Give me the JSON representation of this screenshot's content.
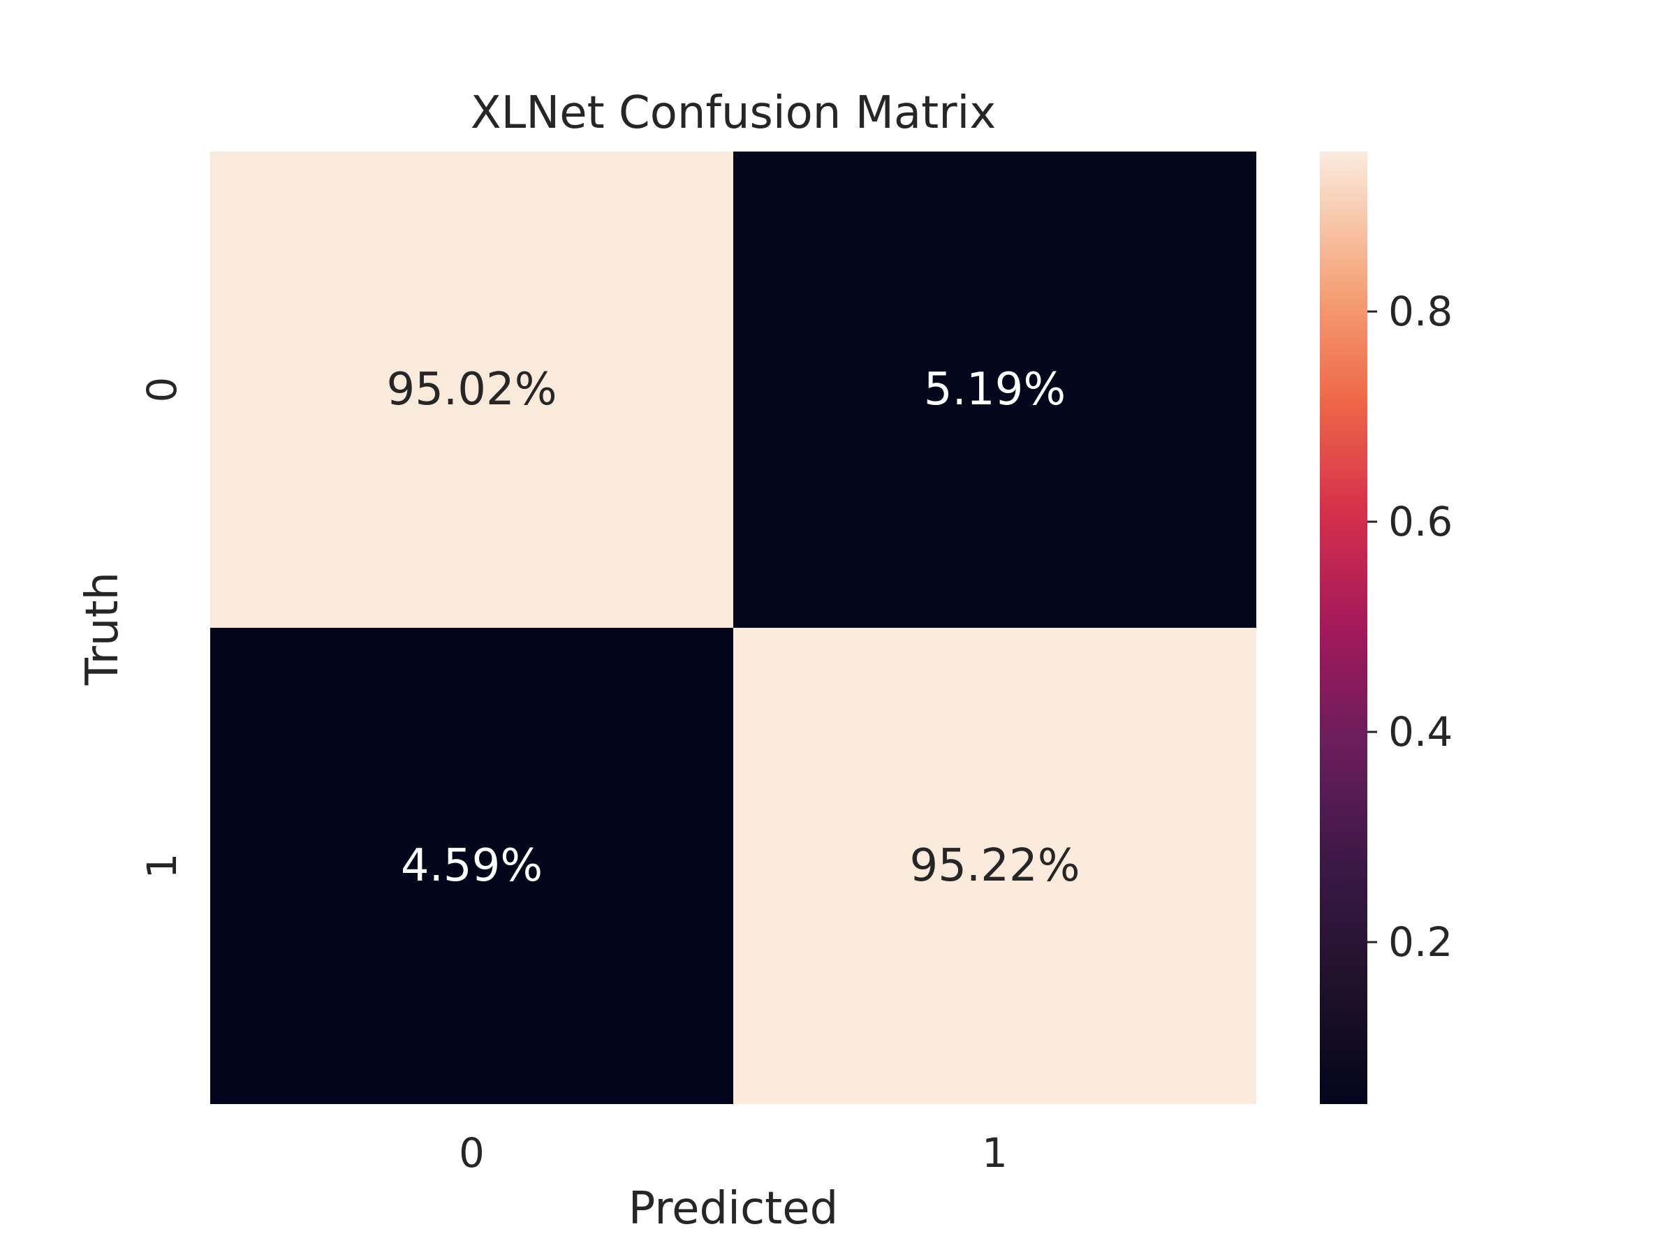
{
  "chart_data": {
    "type": "heatmap",
    "title": "XLNet Confusion Matrix",
    "xlabel": "Predicted",
    "ylabel": "Truth",
    "x_categories": [
      "0",
      "1"
    ],
    "y_categories": [
      "0",
      "1"
    ],
    "values": [
      [
        0.9502,
        0.0519
      ],
      [
        0.0459,
        0.9522
      ]
    ],
    "annotations": [
      [
        "95.02%",
        "5.19%"
      ],
      [
        "4.59%",
        "95.22%"
      ]
    ],
    "colorbar": {
      "colormap": "rocket",
      "vmin": 0.0459,
      "vmax": 0.9522,
      "ticks": [
        0.2,
        0.4,
        0.6,
        0.8
      ],
      "tick_labels": [
        "0.2",
        "0.4",
        "0.6",
        "0.8"
      ]
    },
    "colors": {
      "low": "#03051a",
      "high": "#faebdd",
      "text_dark": "#262626",
      "text_light": "#ffffff"
    }
  }
}
